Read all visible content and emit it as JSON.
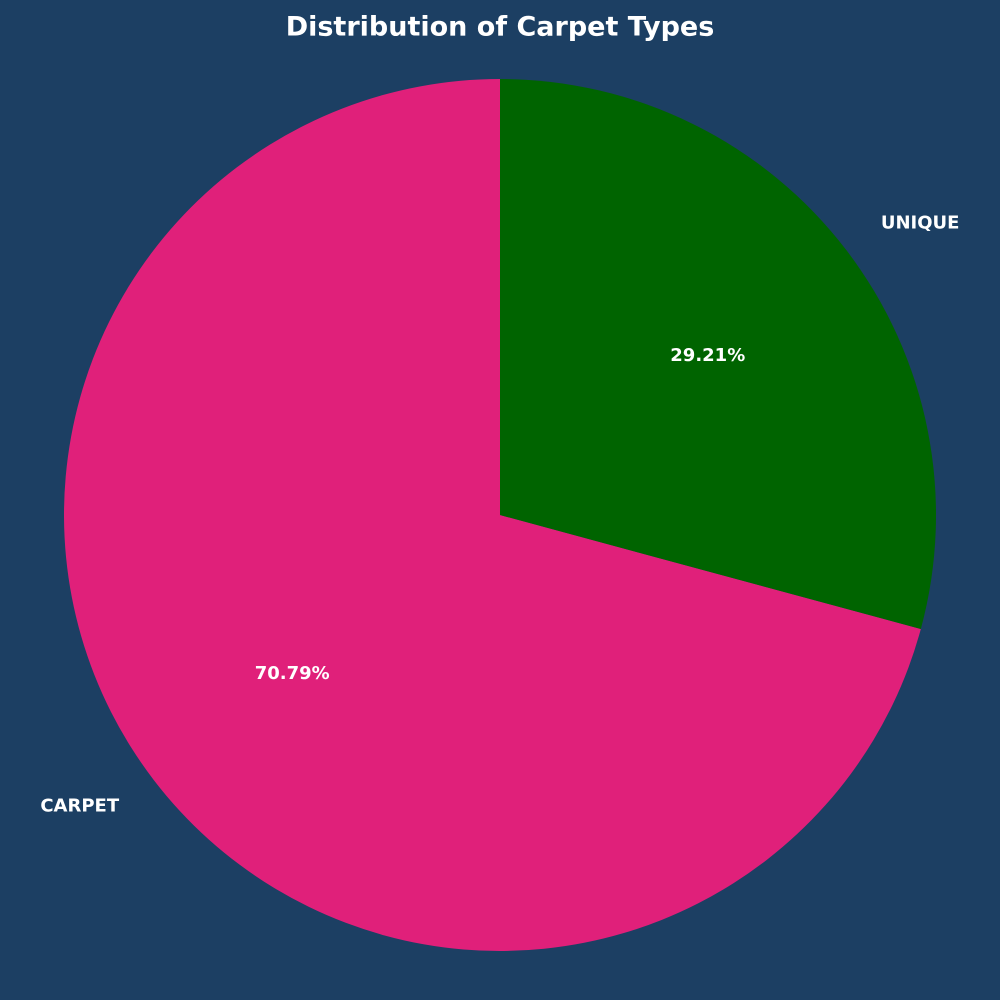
{
  "chart_data": {
    "type": "pie",
    "title": "Distribution of Carpet Types",
    "categories": [
      "CARPET",
      "UNIQUE"
    ],
    "values": [
      70.79,
      29.21
    ],
    "value_labels": [
      "70.79%",
      "29.21%"
    ],
    "colors": [
      "#e0207a",
      "#006400"
    ],
    "start_angle": 90,
    "counterclockwise": true
  }
}
